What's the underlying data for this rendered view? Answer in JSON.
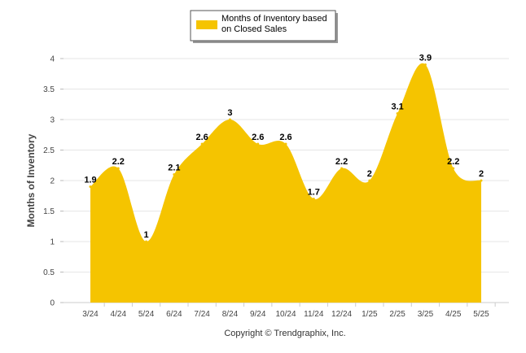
{
  "chart_data": {
    "type": "area",
    "categories": [
      "3/24",
      "4/24",
      "5/24",
      "6/24",
      "7/24",
      "8/24",
      "9/24",
      "10/24",
      "11/24",
      "12/24",
      "1/25",
      "2/25",
      "3/25",
      "4/25",
      "5/25"
    ],
    "series": [
      {
        "name": "Months of Inventory based on Closed Sales",
        "values": [
          1.9,
          2.2,
          1,
          2.1,
          2.6,
          3,
          2.6,
          2.6,
          1.7,
          2.2,
          2,
          3.1,
          3.9,
          2.2,
          2
        ],
        "color": "#f5c400"
      }
    ],
    "data_labels": [
      "1.9",
      "2.2",
      "1",
      "2.1",
      "2.6",
      "3",
      "2.6",
      "2.6",
      "1.7",
      "2.2",
      "2",
      "3.1",
      "3.9",
      "2.2",
      "2"
    ],
    "ylabel": "Months of Inventory",
    "xlabel": "",
    "ylim": [
      0,
      4
    ],
    "y_ticks": [
      "0",
      "0.5",
      "1",
      "1.5",
      "2",
      "2.5",
      "3",
      "3.5",
      "4"
    ],
    "y_tick_values": [
      0,
      0.5,
      1,
      1.5,
      2,
      2.5,
      3,
      3.5,
      4
    ],
    "grid": true,
    "legend_position": "top-center"
  },
  "legend": {
    "line1": "Months of Inventory based",
    "line2": "on Closed Sales"
  },
  "footer": "Copyright © Trendgraphix, Inc."
}
